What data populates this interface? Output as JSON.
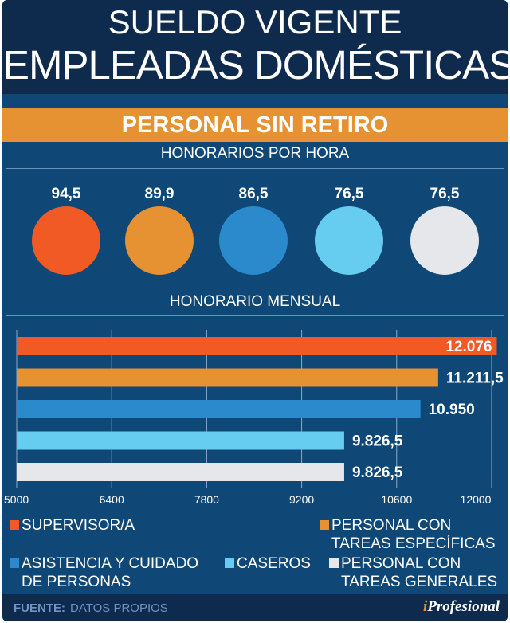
{
  "header": {
    "title_line1": "SUELDO VIGENTE",
    "title_line2": "EMPLEADAS DOMÉSTICAS"
  },
  "band": "PERSONAL SIN RETIRO",
  "hourly": {
    "title": "HONORARIOS POR HORA",
    "values": [
      "94,5",
      "89,9",
      "86,5",
      "76,5",
      "76,5"
    ]
  },
  "colors": [
    "#f15a24",
    "#e69232",
    "#2a8acb",
    "#66ccf0",
    "#e6e7ea"
  ],
  "chart_data": {
    "type": "bar",
    "orientation": "horizontal",
    "title": "HONORARIO MENSUAL",
    "categories": [
      "SUPERVISOR/A",
      "PERSONAL CON TAREAS ESPECÍFICAS",
      "ASISTENCIA Y CUIDADO DE PERSONAS",
      "CASEROS",
      "PERSONAL CON TAREAS GENERALES"
    ],
    "values": [
      12076,
      11211.5,
      10950,
      9826.5,
      9826.5
    ],
    "labels": [
      "12.076",
      "11.211,5",
      "10.950",
      "9.826,5",
      "9.826,5"
    ],
    "xlim": [
      5000,
      12000
    ],
    "ticks": [
      "5000",
      "6400",
      "7800",
      "9200",
      "10600",
      "12000"
    ],
    "grid": true,
    "legend_position": "bottom"
  },
  "legend": [
    {
      "line1": "SUPERVISOR/A",
      "line2": ""
    },
    {
      "line1": "PERSONAL CON",
      "line2": "TAREAS ESPECÍFICAS"
    },
    {
      "line1": "ASISTENCIA Y CUIDADO",
      "line2": "DE PERSONAS"
    },
    {
      "line1": "CASEROS",
      "line2": ""
    },
    {
      "line1": "PERSONAL CON",
      "line2": "TAREAS GENERALES"
    }
  ],
  "footer": {
    "source_label": "FUENTE:",
    "source": "DATOS PROPIOS",
    "logo_i": "i",
    "logo_rest": "Profesional"
  }
}
